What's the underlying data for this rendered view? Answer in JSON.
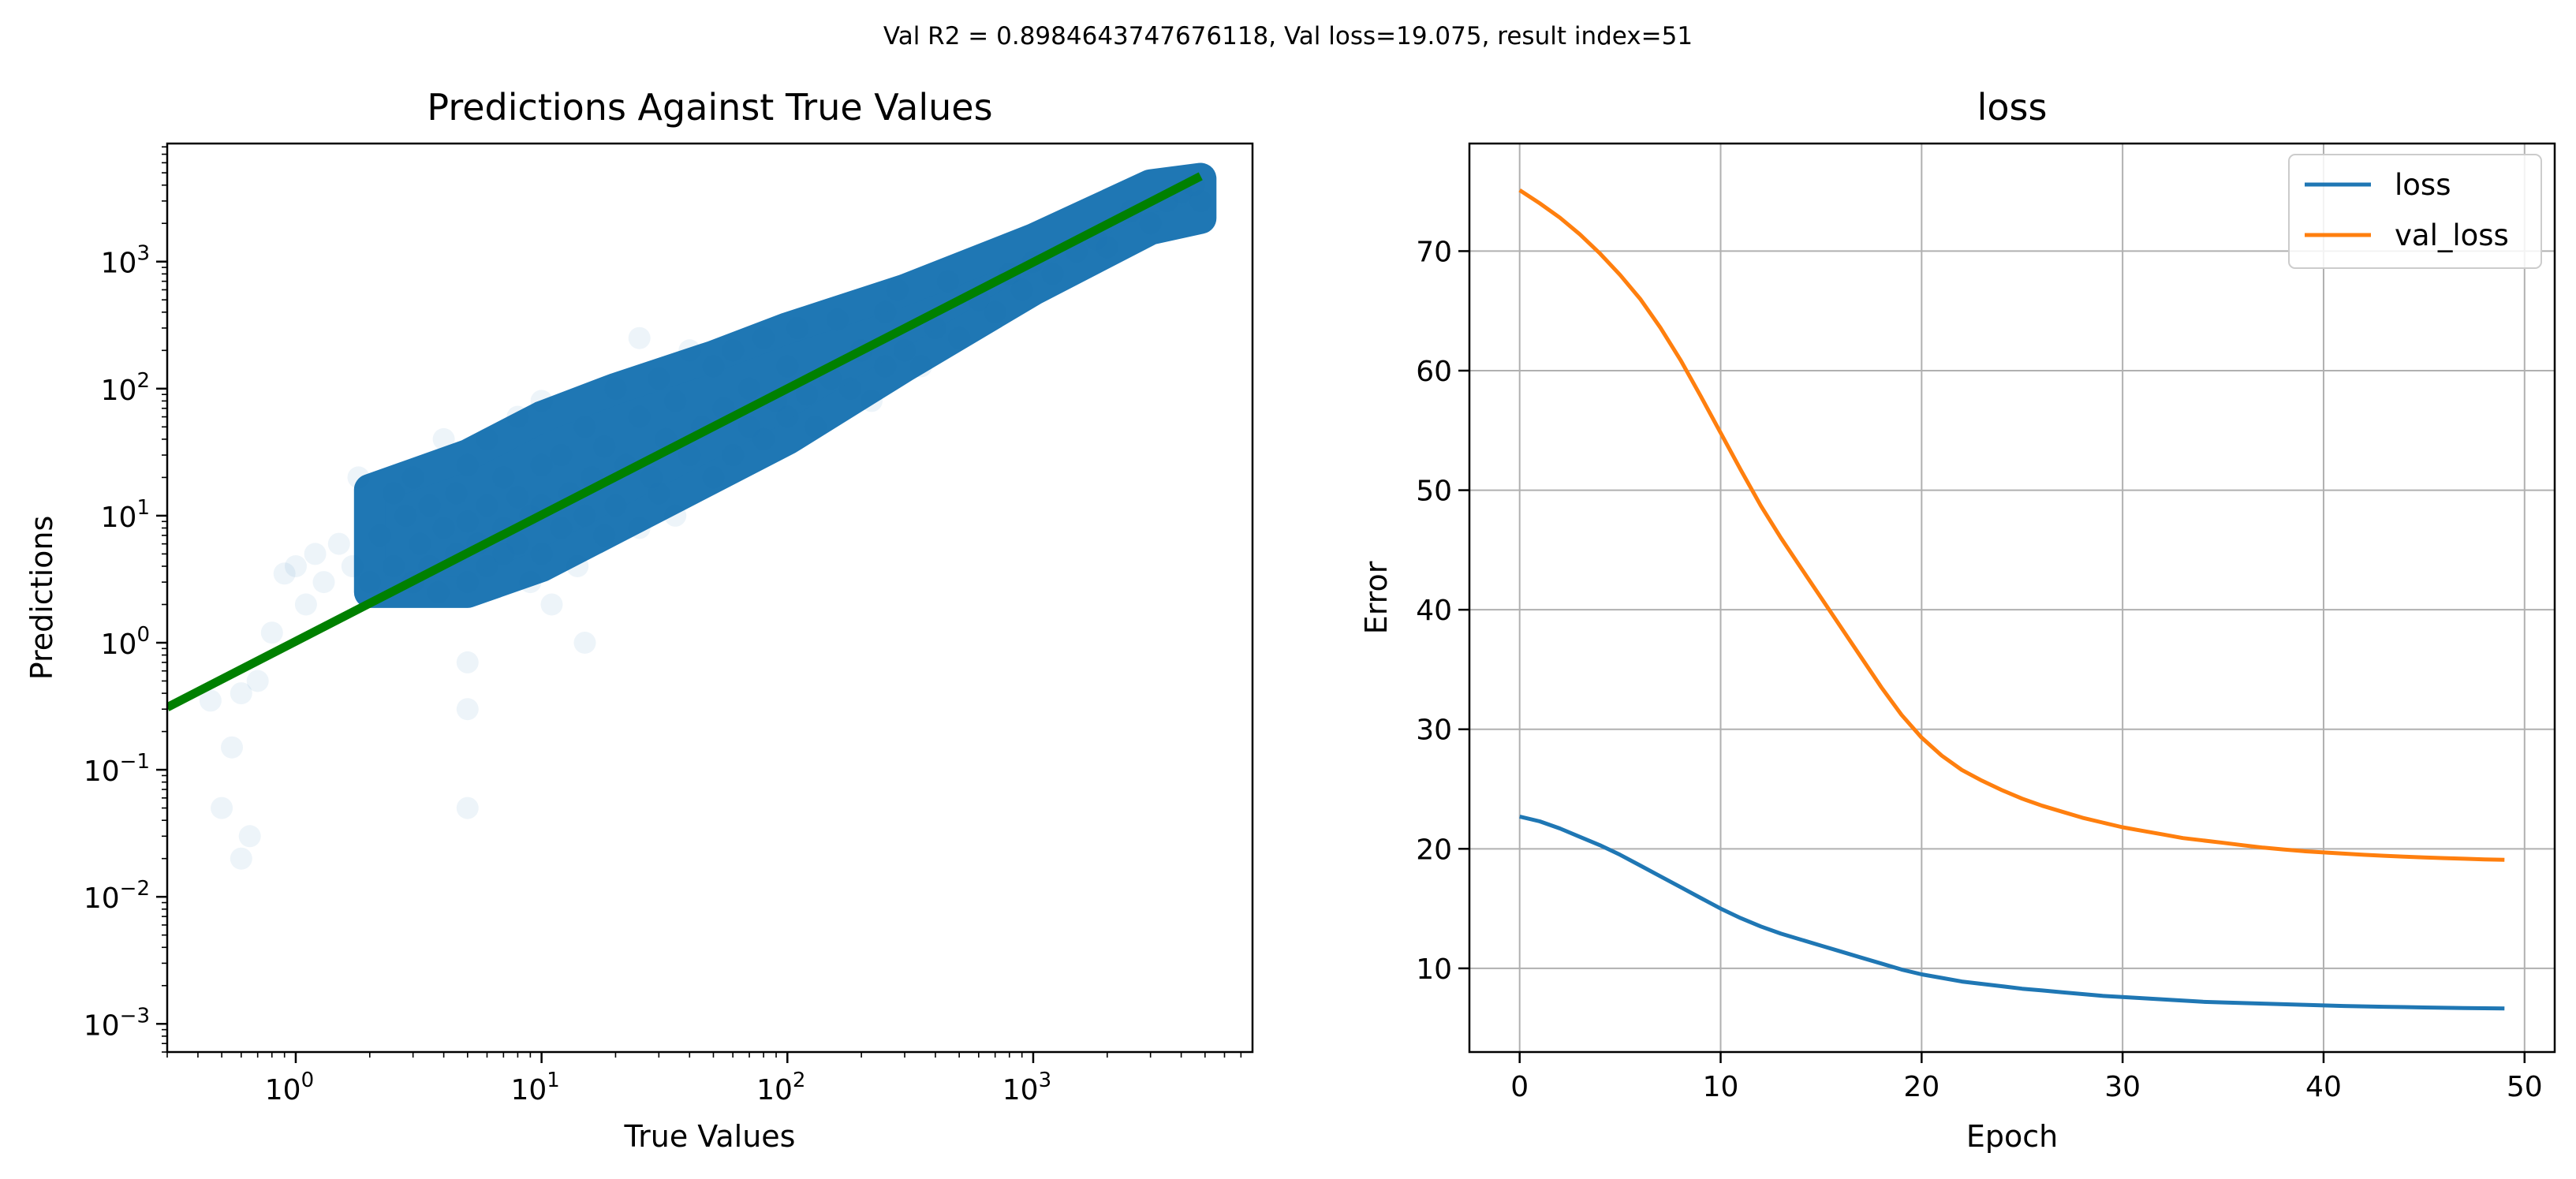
{
  "suptitle": "Val R2 = 0.8984643747676118, Val loss=19.075, result index=51",
  "chart_data": [
    {
      "type": "scatter",
      "title": "Predictions Against True Values",
      "xlabel": "True Values",
      "ylabel": "Predictions",
      "xscale": "log",
      "yscale": "log",
      "xlim": [
        0.3,
        7800
      ],
      "ylim": [
        0.0006,
        8500
      ],
      "grid": false,
      "xticks": [
        {
          "value": 1,
          "base": "10",
          "exp": "0"
        },
        {
          "value": 10,
          "base": "10",
          "exp": "1"
        },
        {
          "value": 100,
          "base": "10",
          "exp": "2"
        },
        {
          "value": 1000,
          "base": "10",
          "exp": "3"
        }
      ],
      "yticks": [
        {
          "value": 0.001,
          "base": "10",
          "exp": "−3"
        },
        {
          "value": 0.01,
          "base": "10",
          "exp": "−2"
        },
        {
          "value": 0.1,
          "base": "10",
          "exp": "−1"
        },
        {
          "value": 1,
          "base": "10",
          "exp": "0"
        },
        {
          "value": 10,
          "base": "10",
          "exp": "1"
        },
        {
          "value": 100,
          "base": "10",
          "exp": "2"
        },
        {
          "value": 1000,
          "base": "10",
          "exp": "3"
        }
      ],
      "points_color": "#1f77b4",
      "points_alpha": 0.03,
      "points": [
        [
          0.45,
          0.35
        ],
        [
          0.5,
          0.05
        ],
        [
          0.55,
          0.15
        ],
        [
          0.6,
          0.02
        ],
        [
          0.6,
          0.4
        ],
        [
          0.65,
          0.03
        ],
        [
          0.7,
          0.5
        ],
        [
          0.8,
          1.2
        ],
        [
          0.9,
          3.5
        ],
        [
          1.0,
          4.0
        ],
        [
          1.1,
          2.0
        ],
        [
          1.2,
          5.0
        ],
        [
          1.3,
          3.0
        ],
        [
          1.5,
          6.0
        ],
        [
          1.7,
          4.0
        ],
        [
          1.8,
          20.0
        ],
        [
          2.0,
          3.0
        ],
        [
          2.2,
          7.0
        ],
        [
          2.5,
          4.0
        ],
        [
          2.5,
          15.0
        ],
        [
          2.8,
          10.0
        ],
        [
          3.0,
          3.0
        ],
        [
          3.0,
          20.0
        ],
        [
          3.2,
          6.0
        ],
        [
          3.5,
          4.0
        ],
        [
          3.5,
          12.0
        ],
        [
          3.8,
          2.5
        ],
        [
          4.0,
          8.0
        ],
        [
          4.0,
          40.0
        ],
        [
          4.5,
          5.0
        ],
        [
          4.5,
          15.0
        ],
        [
          5.0,
          0.7
        ],
        [
          5.0,
          0.3
        ],
        [
          5.0,
          0.05
        ],
        [
          5.0,
          3.0
        ],
        [
          5.0,
          9.0
        ],
        [
          5.0,
          25.0
        ],
        [
          5.5,
          6.0
        ],
        [
          6.0,
          12.0
        ],
        [
          6.0,
          4.0
        ],
        [
          6.0,
          40.0
        ],
        [
          7.0,
          5.0
        ],
        [
          7.0,
          8.0
        ],
        [
          7.0,
          20.0
        ],
        [
          8.0,
          6.0
        ],
        [
          8.0,
          14.0
        ],
        [
          8.0,
          60.0
        ],
        [
          9.0,
          3.0
        ],
        [
          9.0,
          10.0
        ],
        [
          10.0,
          5.0
        ],
        [
          10.0,
          12.0
        ],
        [
          10.0,
          25.0
        ],
        [
          10.0,
          80.0
        ],
        [
          11.0,
          2.0
        ],
        [
          12.0,
          8.0
        ],
        [
          12.0,
          30.0
        ],
        [
          13.0,
          15.0
        ],
        [
          14.0,
          4.0
        ],
        [
          15.0,
          1.0
        ],
        [
          15.0,
          10.0
        ],
        [
          15.0,
          50.0
        ],
        [
          16.0,
          20.0
        ],
        [
          18.0,
          7.0
        ],
        [
          18.0,
          35.0
        ],
        [
          20.0,
          12.0
        ],
        [
          20.0,
          100.0
        ],
        [
          22.0,
          25.0
        ],
        [
          25.0,
          8.0
        ],
        [
          25.0,
          60.0
        ],
        [
          25.0,
          250.0
        ],
        [
          28.0,
          20.0
        ],
        [
          30.0,
          15.0
        ],
        [
          30.0,
          120.0
        ],
        [
          32.0,
          40.0
        ],
        [
          35.0,
          10.0
        ],
        [
          35.0,
          80.0
        ],
        [
          40.0,
          30.0
        ],
        [
          40.0,
          200.0
        ],
        [
          45.0,
          50.0
        ],
        [
          50.0,
          20.0
        ],
        [
          50.0,
          150.0
        ],
        [
          55.0,
          70.0
        ],
        [
          60.0,
          30.0
        ],
        [
          60.0,
          200.0
        ],
        [
          70.0,
          50.0
        ],
        [
          70.0,
          100.0
        ],
        [
          80.0,
          40.0
        ],
        [
          80.0,
          250.0
        ],
        [
          90.0,
          80.0
        ],
        [
          100.0,
          60.0
        ],
        [
          100.0,
          150.0
        ],
        [
          110.0,
          300.0
        ],
        [
          120.0,
          90.0
        ],
        [
          130.0,
          50.0
        ],
        [
          150.0,
          120.0
        ],
        [
          160.0,
          350.0
        ],
        [
          180.0,
          100.0
        ],
        [
          200.0,
          200.0
        ],
        [
          220.0,
          80.0
        ],
        [
          250.0,
          150.0
        ],
        [
          250.0,
          400.0
        ],
        [
          280.0,
          600.0
        ],
        [
          300.0,
          200.0
        ],
        [
          350.0,
          150.0
        ],
        [
          400.0,
          300.0
        ],
        [
          450.0,
          700.0
        ],
        [
          500.0,
          250.0
        ],
        [
          600.0,
          500.0
        ],
        [
          700.0,
          400.0
        ],
        [
          800.0,
          800.0
        ],
        [
          900.0,
          600.0
        ],
        [
          1000.0,
          1000.0
        ],
        [
          1200.0,
          800.0
        ],
        [
          1500.0,
          1200.0
        ],
        [
          1800.0,
          1500.0
        ],
        [
          2000.0,
          1300.0
        ],
        [
          2500.0,
          2500.0
        ],
        [
          3000.0,
          2000.0
        ],
        [
          3500.0,
          3000.0
        ],
        [
          4000.0,
          3500.0
        ],
        [
          4500.0,
          4000.0
        ],
        [
          4800.0,
          3000.0
        ]
      ],
      "band_upper": [
        [
          2.0,
          16.0
        ],
        [
          5.0,
          30.0
        ],
        [
          10.0,
          60.0
        ],
        [
          20.0,
          100.0
        ],
        [
          50.0,
          180.0
        ],
        [
          100.0,
          300.0
        ],
        [
          300.0,
          600.0
        ],
        [
          1000.0,
          1500.0
        ],
        [
          3000.0,
          4000.0
        ],
        [
          4800.0,
          4500.0
        ]
      ],
      "band_lower": [
        [
          4800.0,
          2200.0
        ],
        [
          3000.0,
          1800.0
        ],
        [
          1000.0,
          600.0
        ],
        [
          300.0,
          150.0
        ],
        [
          100.0,
          40.0
        ],
        [
          50.0,
          20.0
        ],
        [
          20.0,
          8.0
        ],
        [
          10.0,
          4.0
        ],
        [
          5.0,
          2.5
        ],
        [
          2.0,
          2.5
        ]
      ],
      "fit_line": {
        "color": "#008000",
        "points": [
          [
            0.3,
            0.31
          ],
          [
            4800,
            4700
          ]
        ]
      }
    },
    {
      "type": "line",
      "title": "loss",
      "xlabel": "Epoch",
      "ylabel": "Error",
      "xlim": [
        -2.5,
        51.5
      ],
      "ylim": [
        3.0,
        79.0
      ],
      "grid": true,
      "legend_position": "top-right",
      "xticks": [
        0,
        10,
        20,
        30,
        40,
        50
      ],
      "yticks": [
        10,
        20,
        30,
        40,
        50,
        60,
        70
      ],
      "x": [
        0,
        1,
        2,
        3,
        4,
        5,
        6,
        7,
        8,
        9,
        10,
        11,
        12,
        13,
        14,
        15,
        16,
        17,
        18,
        19,
        20,
        21,
        22,
        23,
        24,
        25,
        26,
        27,
        28,
        29,
        30,
        31,
        32,
        33,
        34,
        35,
        36,
        37,
        38,
        39,
        40,
        41,
        42,
        43,
        44,
        45,
        46,
        47,
        48,
        49
      ],
      "series": [
        {
          "name": "loss",
          "color": "#1f77b4",
          "values": [
            22.7,
            22.3,
            21.7,
            21.0,
            20.3,
            19.5,
            18.6,
            17.7,
            16.8,
            15.9,
            15.0,
            14.2,
            13.5,
            12.9,
            12.4,
            11.9,
            11.4,
            10.9,
            10.4,
            9.9,
            9.5,
            9.2,
            8.9,
            8.7,
            8.5,
            8.3,
            8.15,
            8.0,
            7.85,
            7.7,
            7.6,
            7.5,
            7.4,
            7.3,
            7.2,
            7.15,
            7.1,
            7.05,
            7.0,
            6.95,
            6.9,
            6.85,
            6.82,
            6.79,
            6.76,
            6.73,
            6.7,
            6.68,
            6.66,
            6.64
          ]
        },
        {
          "name": "val_loss",
          "color": "#ff7f0e",
          "values": [
            75.1,
            74.0,
            72.8,
            71.4,
            69.8,
            68.0,
            66.0,
            63.6,
            60.9,
            57.9,
            54.8,
            51.7,
            48.7,
            46.0,
            43.5,
            41.0,
            38.5,
            36.0,
            33.5,
            31.2,
            29.3,
            27.8,
            26.6,
            25.7,
            24.9,
            24.2,
            23.6,
            23.1,
            22.6,
            22.2,
            21.8,
            21.5,
            21.2,
            20.9,
            20.7,
            20.5,
            20.3,
            20.1,
            19.95,
            19.8,
            19.7,
            19.6,
            19.5,
            19.42,
            19.35,
            19.28,
            19.22,
            19.17,
            19.12,
            19.075
          ]
        }
      ]
    }
  ]
}
